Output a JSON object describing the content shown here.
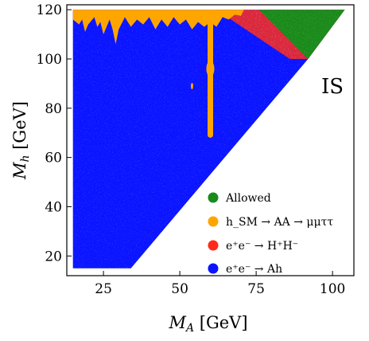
{
  "chart_data": {
    "type": "scatter",
    "title": "",
    "xlabel": "M_A [GeV]",
    "ylabel": "M_h [GeV]",
    "xlim": [
      13,
      107
    ],
    "ylim": [
      12,
      122
    ],
    "xticks": [
      25,
      50,
      75,
      100
    ],
    "yticks": [
      20,
      40,
      60,
      80,
      100,
      120
    ],
    "annotation": "IS",
    "grid": false,
    "legend_position": "lower-right",
    "series": [
      {
        "name": "Allowed",
        "color": "#1a8a1a",
        "region": {
          "polygon": [
            [
              76,
              120
            ],
            [
              104,
              120
            ],
            [
              92,
              100
            ]
          ]
        }
      },
      {
        "name": "h_SM → AA → μμττ",
        "color": "#ffa500",
        "region": {
          "top_band": {
            "x_min": 15,
            "x_max": 71,
            "y_top": 120
          },
          "vertical_strip": {
            "x": 60,
            "y_min": 68,
            "y_max": 120
          },
          "small_spot": {
            "x": 54,
            "y": 89
          }
        }
      },
      {
        "name": "e⁺e⁻ → H⁺H⁻",
        "color": "#ff2a1a",
        "region": {
          "polygon": [
            [
              62,
              120
            ],
            [
              104,
              120
            ],
            [
              92,
              100
            ],
            [
              86,
              100
            ]
          ]
        }
      },
      {
        "name": "e⁺e⁻ → Ah",
        "color": "#0a14ff",
        "region": {
          "polygon": [
            [
              15,
              15
            ],
            [
              34,
              15
            ],
            [
              92,
              100
            ],
            [
              104,
              120
            ],
            [
              15,
              120
            ]
          ]
        }
      }
    ]
  }
}
